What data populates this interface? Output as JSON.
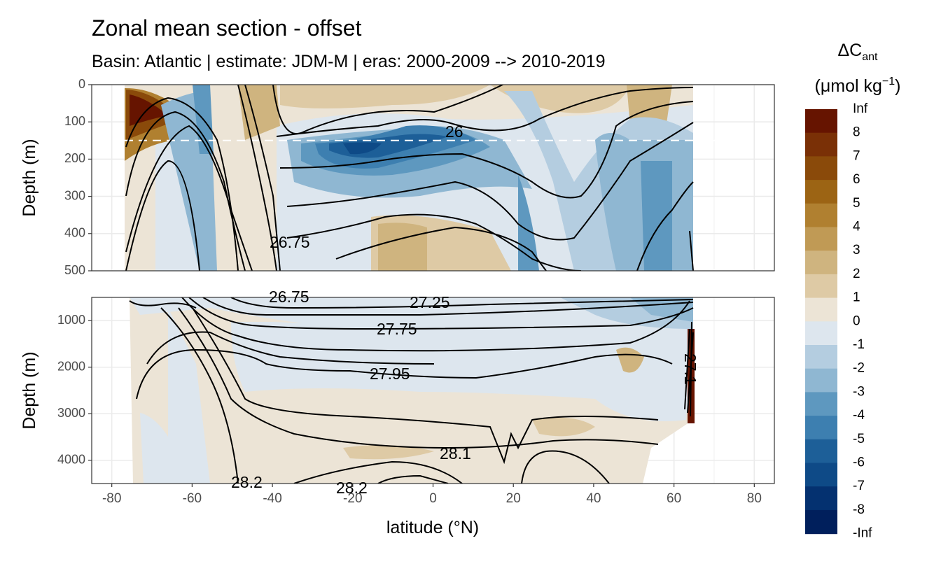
{
  "title": "Zonal mean section - offset",
  "subtitle": "Basin: Atlantic | estimate: JDM-M | eras: 2000-2009 --> 2010-2019",
  "chart_data": {
    "type": "heatmap",
    "xlabel": "latitude (°N)",
    "ylabel": "Depth (m)",
    "xlim": [
      -85,
      85
    ],
    "x_ticks": [
      "-80",
      "-60",
      "-40",
      "-20",
      "0",
      "20",
      "40",
      "60",
      "80"
    ],
    "panels": [
      {
        "name": "upper",
        "ylim": [
          0,
          500
        ],
        "y_ticks": [
          "0",
          "100",
          "200",
          "300",
          "400",
          "500"
        ],
        "dashed_line_depth": 150
      },
      {
        "name": "lower",
        "ylim": [
          500,
          4500
        ],
        "y_ticks": [
          "1000",
          "2000",
          "3000",
          "4000"
        ]
      }
    ],
    "legend": {
      "title": "ΔC",
      "title_sub": "ant",
      "units": "(μmol kg",
      "units_sup": "−1",
      "units_end": ")",
      "labels": [
        "Inf",
        "8",
        "7",
        "6",
        "5",
        "4",
        "3",
        "2",
        "1",
        "0",
        "-1",
        "-2",
        "-3",
        "-4",
        "-5",
        "-6",
        "-7",
        "-8",
        "-Inf"
      ],
      "colors": [
        "#661400",
        "#7a3006",
        "#8a4a0a",
        "#9c6414",
        "#b08030",
        "#c09a55",
        "#cfb47f",
        "#decaa5",
        "#ece4d6",
        "#dde6ee",
        "#b4cde0",
        "#8fb7d2",
        "#5e98bf",
        "#3d7fb0",
        "#1d5f98",
        "#0e4a87",
        "#043170",
        "#001f5c"
      ]
    },
    "contour_labels": [
      "26",
      "26.75",
      "26.75",
      "27.25",
      "27.75",
      "27.95",
      "28.1",
      "28.2",
      "28.2",
      "27.1"
    ],
    "grid": true,
    "legend_position": "right"
  }
}
